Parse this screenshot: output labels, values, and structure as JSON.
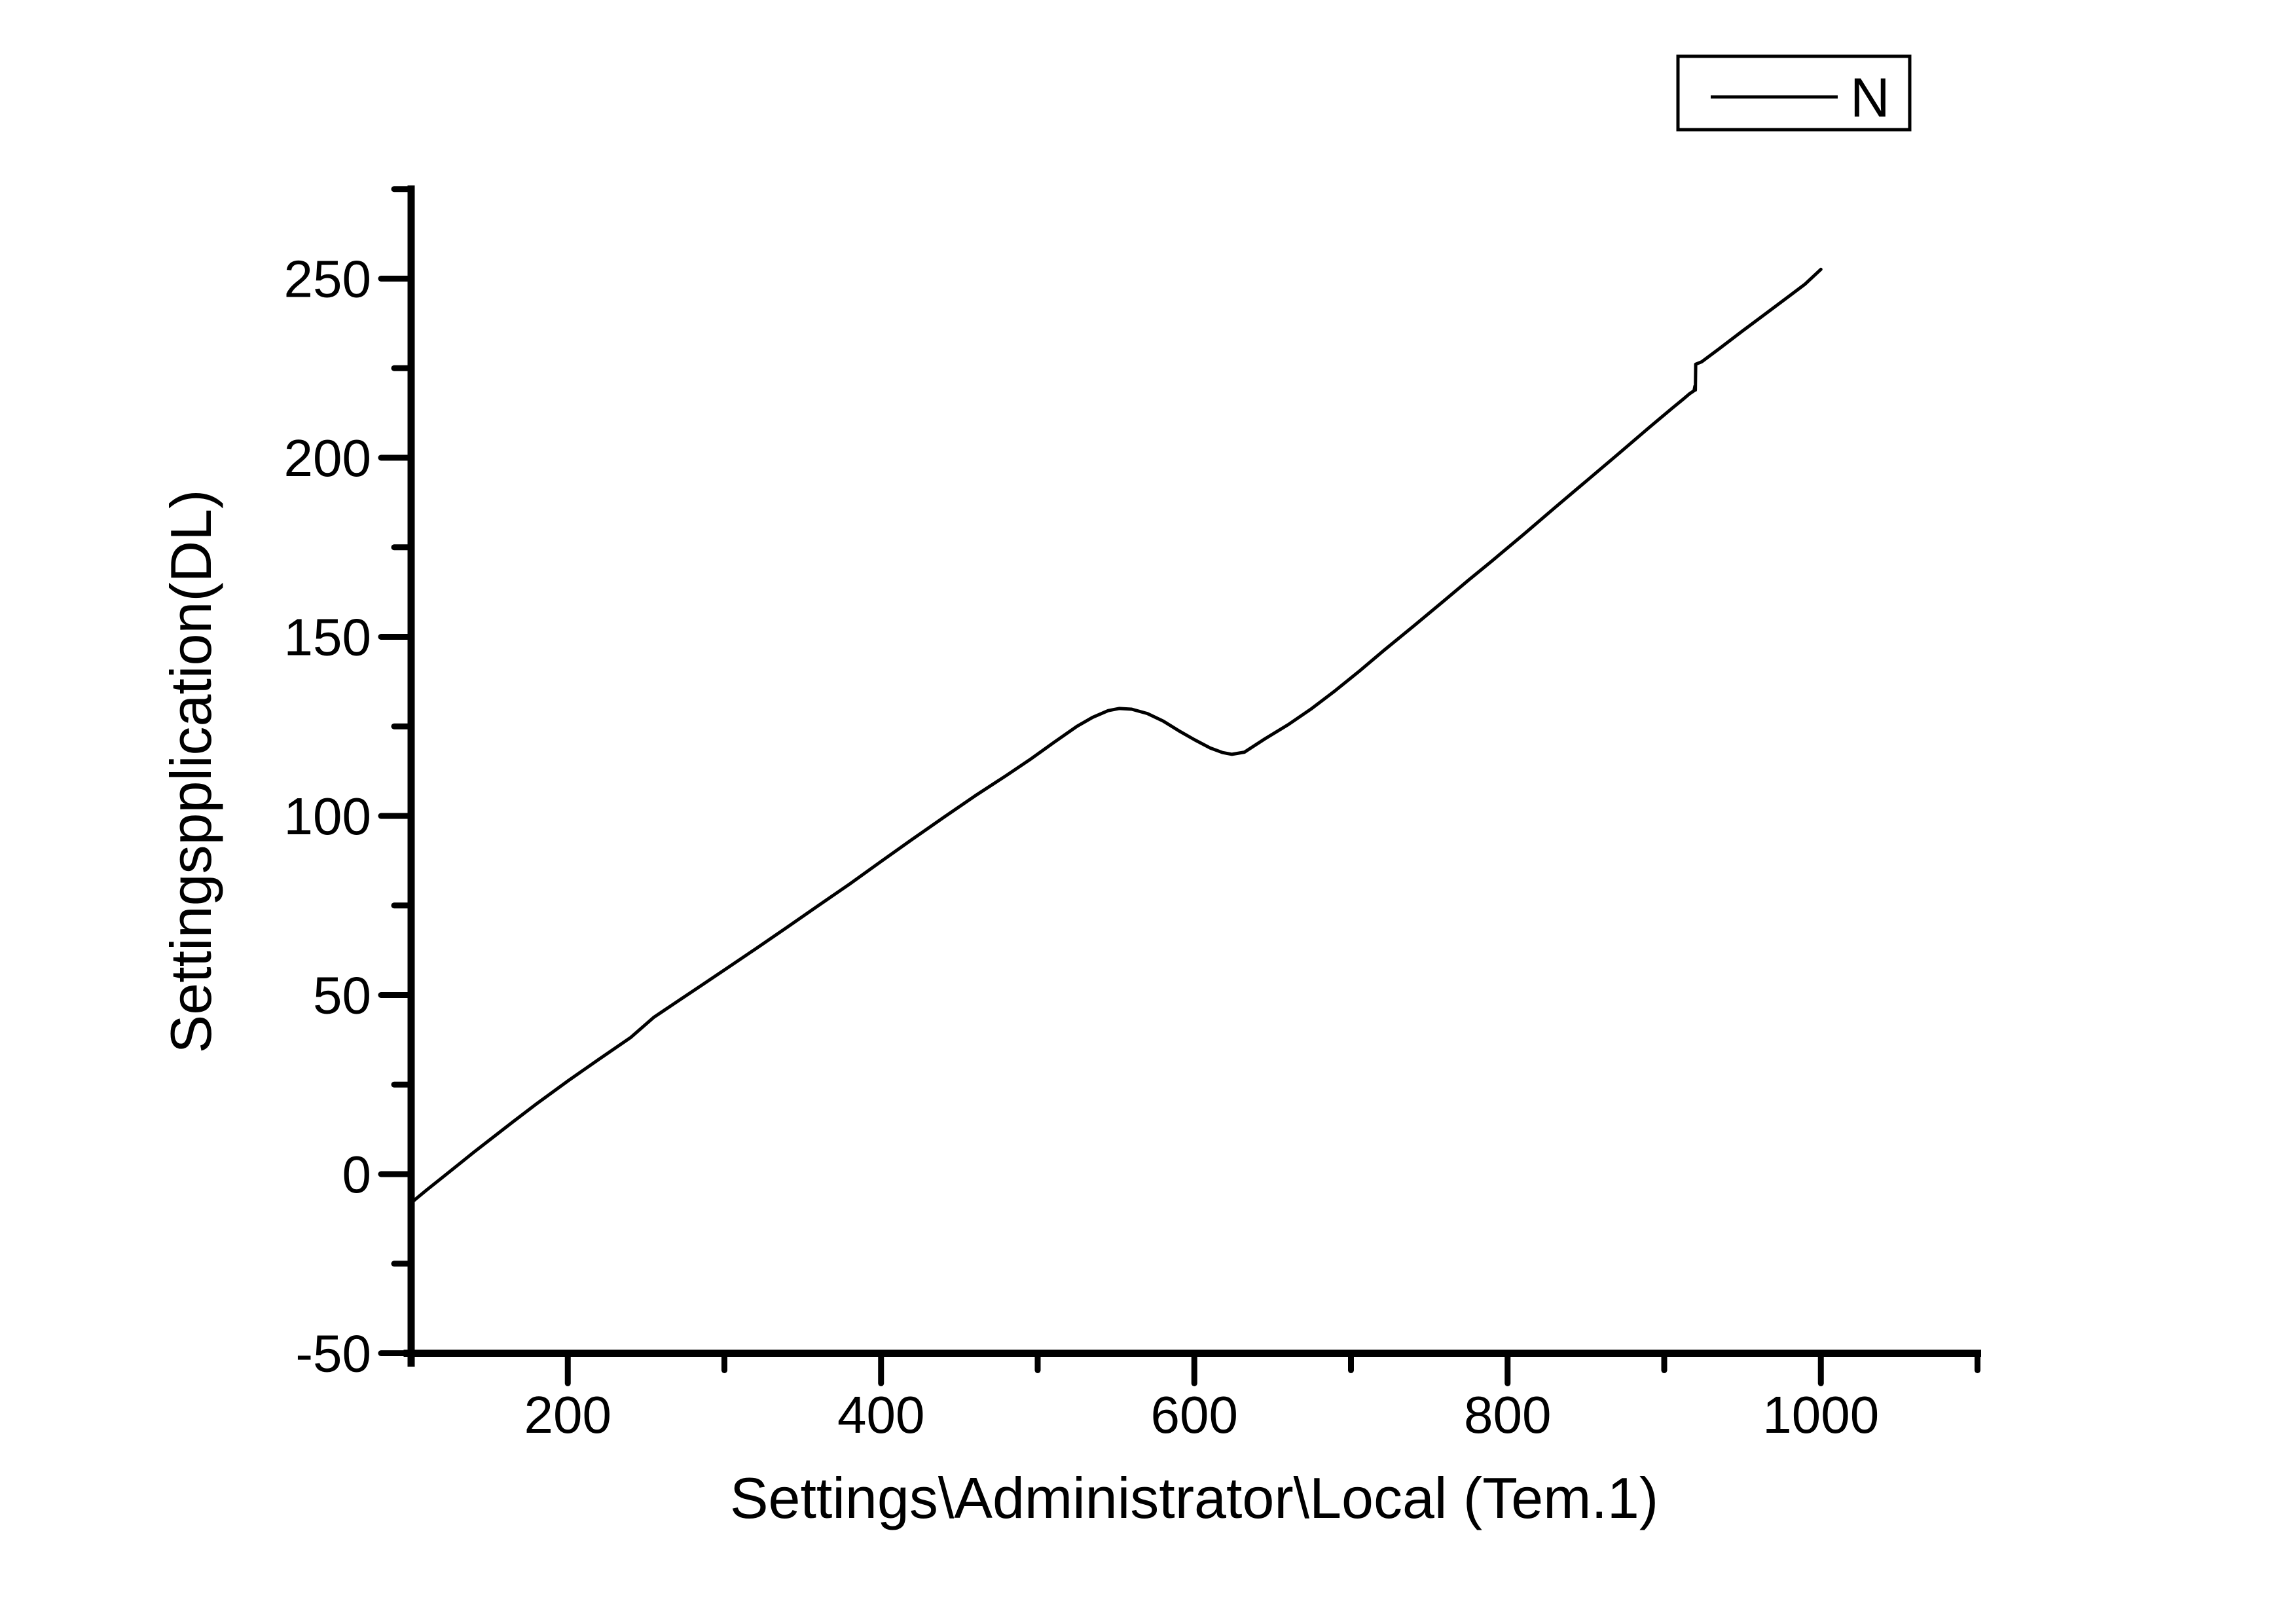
{
  "figure": {
    "background": "#ffffff",
    "line_color": "#000000",
    "text_color": "#000000"
  },
  "legend": {
    "series_label": "N",
    "position": "top-right"
  },
  "axes": {
    "x": {
      "title": "Settings\\Administrator\\Local (Tem.1)",
      "min": 100,
      "max": 1100,
      "major_ticks": [
        200,
        400,
        600,
        800,
        1000
      ],
      "major_tick_labels": [
        "200",
        "400",
        "600",
        "800",
        "1000"
      ],
      "minor_ticks": [
        300,
        500,
        700,
        900,
        1100
      ]
    },
    "y": {
      "title": "Settingspplication(DL)",
      "min": -50,
      "max": 275,
      "major_ticks": [
        -50,
        0,
        50,
        100,
        150,
        200,
        250
      ],
      "major_tick_labels": [
        "-50",
        "0",
        "50",
        "100",
        "150",
        "200",
        "250"
      ],
      "minor_ticks": [
        -25,
        25,
        75,
        125,
        175,
        225,
        275
      ]
    }
  },
  "chart_data": {
    "type": "line",
    "title": "",
    "xlabel": "Settings\\Administrator\\Local (Tem.1)",
    "ylabel": "Settingspplication(DL)",
    "xlim": [
      100,
      1100
    ],
    "ylim": [
      -50,
      275
    ],
    "grid": false,
    "legend_position": "top-right",
    "series": [
      {
        "name": "N",
        "color": "#000000",
        "points": [
          [
            100,
            -8
          ],
          [
            110,
            -4.4
          ],
          [
            120,
            -0.9
          ],
          [
            130,
            2.6
          ],
          [
            140,
            6.1
          ],
          [
            150,
            9.5
          ],
          [
            165,
            14.6
          ],
          [
            180,
            19.6
          ],
          [
            200,
            26.0
          ],
          [
            220,
            32.1
          ],
          [
            240,
            38.1
          ],
          [
            255,
            43.8
          ],
          [
            270,
            48.2
          ],
          [
            285,
            52.6
          ],
          [
            300,
            57.0
          ],
          [
            320,
            62.9
          ],
          [
            340,
            68.9
          ],
          [
            360,
            75.0
          ],
          [
            380,
            81.0
          ],
          [
            400,
            87.3
          ],
          [
            420,
            93.5
          ],
          [
            440,
            99.6
          ],
          [
            460,
            105.6
          ],
          [
            480,
            111.3
          ],
          [
            495,
            115.7
          ],
          [
            510,
            120.4
          ],
          [
            525,
            125.0
          ],
          [
            535,
            127.5
          ],
          [
            545,
            129.4
          ],
          [
            552,
            130.0
          ],
          [
            560,
            129.8
          ],
          [
            570,
            128.6
          ],
          [
            580,
            126.5
          ],
          [
            590,
            123.8
          ],
          [
            600,
            121.3
          ],
          [
            610,
            119.0
          ],
          [
            618,
            117.7
          ],
          [
            624,
            117.2
          ],
          [
            632,
            117.8
          ],
          [
            645,
            121.5
          ],
          [
            660,
            125.5
          ],
          [
            675,
            130.0
          ],
          [
            690,
            135.0
          ],
          [
            705,
            140.3
          ],
          [
            721,
            146.2
          ],
          [
            740,
            153.0
          ],
          [
            760,
            160.3
          ],
          [
            775,
            165.8
          ],
          [
            789,
            170.8
          ],
          [
            810,
            178.5
          ],
          [
            830,
            186.0
          ],
          [
            850,
            193.4
          ],
          [
            870,
            200.8
          ],
          [
            890,
            208.3
          ],
          [
            905,
            213.8
          ],
          [
            912,
            216.3
          ],
          [
            916,
            217.8
          ],
          [
            919,
            218.7
          ],
          [
            919.6,
            220.0
          ],
          [
            919.9,
            218.9
          ],
          [
            920.1,
            226.1
          ],
          [
            924,
            226.8
          ],
          [
            935,
            230.4
          ],
          [
            950,
            235.4
          ],
          [
            965,
            240.3
          ],
          [
            980,
            245.2
          ],
          [
            990,
            248.5
          ],
          [
            1000,
            252.6
          ]
        ]
      }
    ]
  }
}
